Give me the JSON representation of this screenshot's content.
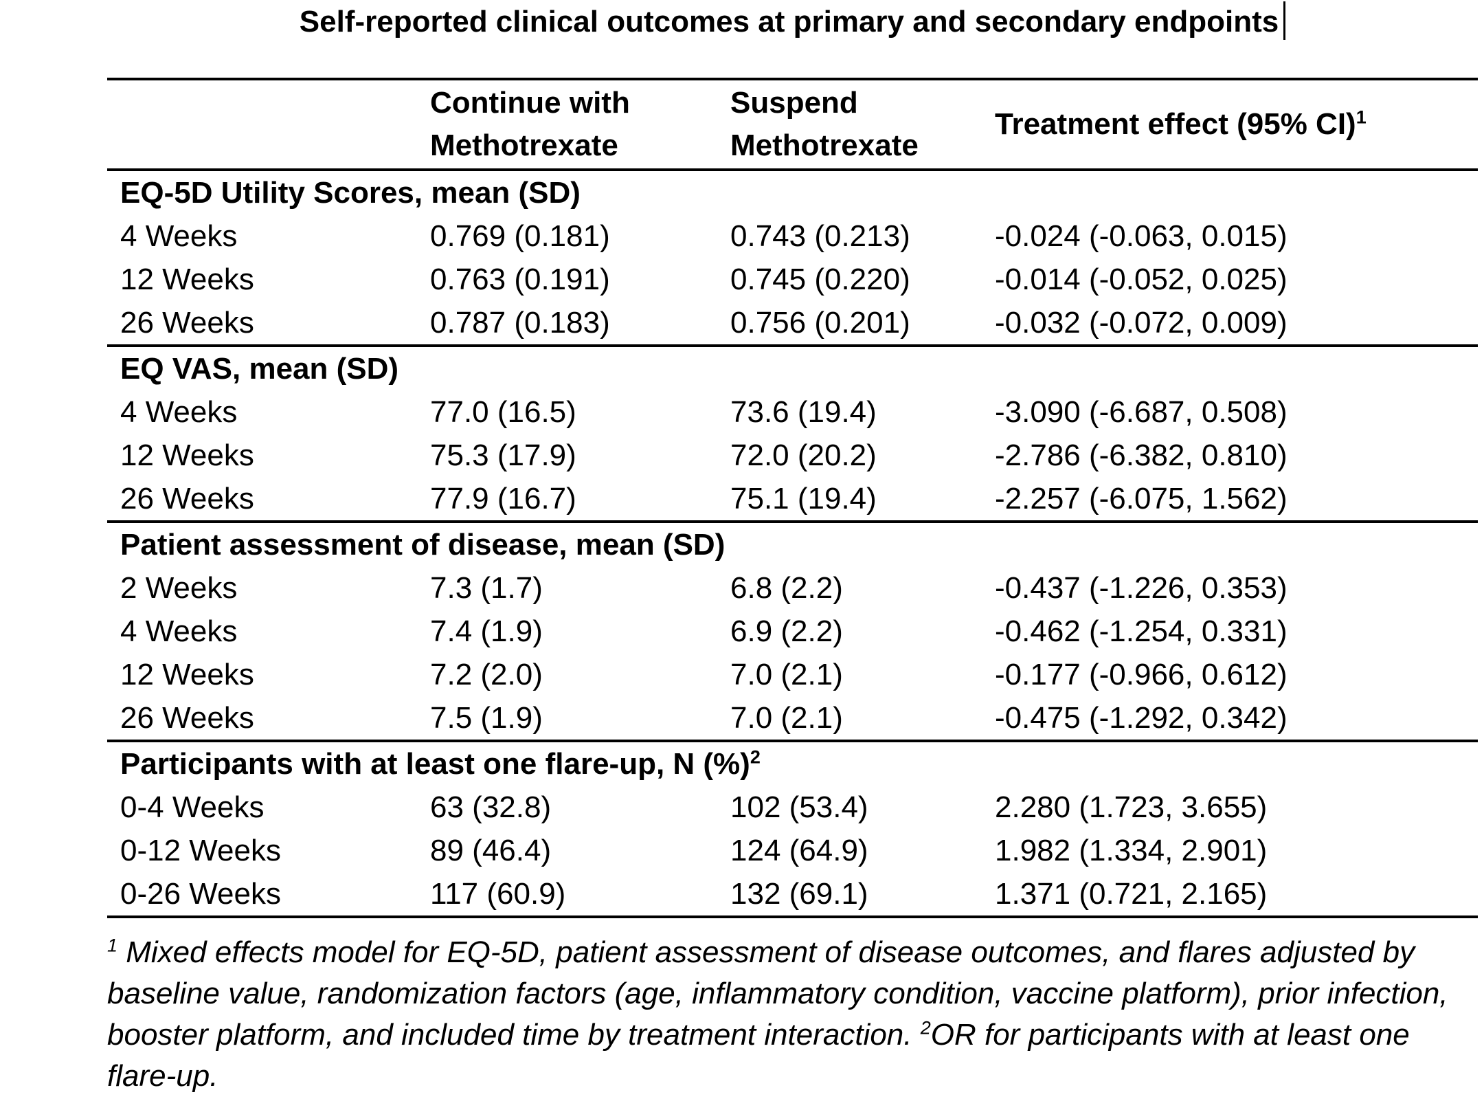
{
  "colors": {
    "text": "#000000",
    "background": "#ffffff",
    "rule": "#000000"
  },
  "title": "Self-reported clinical outcomes at primary and secondary endpoints",
  "table": {
    "col_headers": {
      "row_label": "",
      "continue": "Continue with Methotrexate",
      "suspend": "Suspend Methotrexate",
      "effect": "Treatment effect (95% CI)",
      "effect_sup": "1"
    },
    "sections": [
      {
        "header": "EQ-5D Utility Scores, mean (SD)",
        "rows": [
          {
            "label": "4 Weeks",
            "cont": "0.769 (0.181)",
            "susp": "0.743 (0.213)",
            "effect": "-0.024 (-0.063, 0.015)"
          },
          {
            "label": "12 Weeks",
            "cont": "0.763 (0.191)",
            "susp": "0.745 (0.220)",
            "effect": "-0.014 (-0.052, 0.025)"
          },
          {
            "label": "26 Weeks",
            "cont": "0.787 (0.183)",
            "susp": "0.756 (0.201)",
            "effect": "-0.032 (-0.072, 0.009)"
          }
        ]
      },
      {
        "header": "EQ VAS, mean (SD)",
        "rows": [
          {
            "label": "4 Weeks",
            "cont": "77.0 (16.5)",
            "susp": "73.6 (19.4)",
            "effect": "-3.090 (-6.687, 0.508)"
          },
          {
            "label": "12 Weeks",
            "cont": "75.3 (17.9)",
            "susp": "72.0 (20.2)",
            "effect": "-2.786 (-6.382, 0.810)"
          },
          {
            "label": "26 Weeks",
            "cont": "77.9 (16.7)",
            "susp": "75.1 (19.4)",
            "effect": "-2.257 (-6.075, 1.562)"
          }
        ]
      },
      {
        "header": "Patient assessment of disease, mean (SD)",
        "rows": [
          {
            "label": "2 Weeks",
            "cont": "7.3 (1.7)",
            "susp": "6.8 (2.2)",
            "effect": "-0.437 (-1.226, 0.353)"
          },
          {
            "label": "4 Weeks",
            "cont": "7.4 (1.9)",
            "susp": "6.9 (2.2)",
            "effect": "-0.462 (-1.254, 0.331)"
          },
          {
            "label": "12 Weeks",
            "cont": "7.2 (2.0)",
            "susp": "7.0 (2.1)",
            "effect": "-0.177 (-0.966, 0.612)"
          },
          {
            "label": "26 Weeks",
            "cont": "7.5 (1.9)",
            "susp": "7.0 (2.1)",
            "effect": "-0.475 (-1.292, 0.342)"
          }
        ]
      },
      {
        "header": "Participants with at least one flare-up, N (%)",
        "header_sup": "2",
        "rows": [
          {
            "label": "0-4 Weeks",
            "cont": "63 (32.8)",
            "susp": "102 (53.4)",
            "effect": "2.280 (1.723, 3.655)"
          },
          {
            "label": "0-12 Weeks",
            "cont": "89 (46.4)",
            "susp": "124 (64.9)",
            "effect": "1.982 (1.334, 2.901)"
          },
          {
            "label": "0-26 Weeks",
            "cont": "117 (60.9)",
            "susp": "132 (69.1)",
            "effect": "1.371 (0.721, 2.165)"
          }
        ]
      }
    ]
  },
  "footnote": {
    "sup1": "1",
    "text1": " Mixed effects model for EQ-5D, patient assessment of disease outcomes, and flares adjusted by baseline value, randomization factors (age, inflammatory condition, vaccine platform), prior infection, booster platform, and included time by treatment interaction. ",
    "sup2": "2",
    "text2": "OR for participants with at least one flare-up."
  }
}
